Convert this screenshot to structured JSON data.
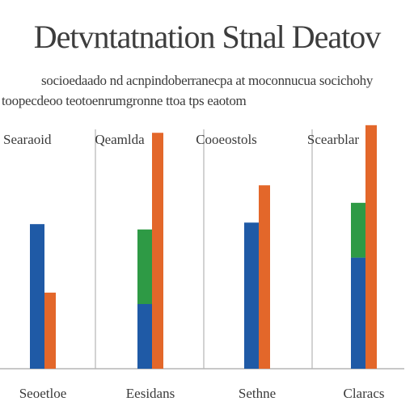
{
  "colors": {
    "blue": "#1f5aa6",
    "orange": "#e3672a",
    "green": "#2e9a45",
    "axis": "#b5b5b5",
    "text": "#3a3a3a"
  },
  "chart_data": {
    "type": "bar",
    "title": "Detvntatnation Stnal Deatov",
    "subtitle_lines": [
      "socioedaado nd acnpindoberranecpa at moconnucua socichohy",
      "toopecdeoo teotoenrumgronne ttoa tps eaotom"
    ],
    "group_headers": [
      "Searaoid",
      "Qeamlda",
      "Cooeostols",
      "Scearblar"
    ],
    "categories": [
      "Seoetloe",
      "Eesidans",
      "Sethne",
      "Claracs"
    ],
    "series": [
      {
        "color": "blue",
        "values": [
          190,
          85,
          192,
          146
        ]
      },
      {
        "color": "green",
        "values": [
          null,
          98,
          null,
          72
        ]
      },
      {
        "color": "orange",
        "values": [
          100,
          310,
          241,
          320
        ]
      }
    ],
    "stacked_series_index": 1,
    "ylim": [
      0,
      340
    ],
    "grid": false
  }
}
